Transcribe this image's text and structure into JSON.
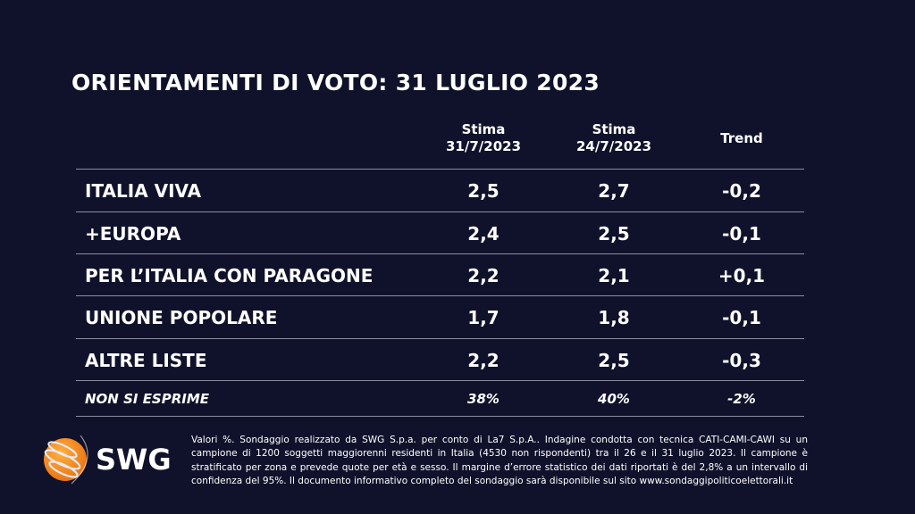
{
  "title": "ORIENTAMENTI DI VOTO: 31 LUGLIO 2023",
  "headers": {
    "col1_l1": "Stima",
    "col1_l2": "31/7/2023",
    "col2_l1": "Stima",
    "col2_l2": "24/7/2023",
    "col3": "Trend"
  },
  "rows": [
    {
      "party": "ITALIA VIVA",
      "current": "2,5",
      "previous": "2,7",
      "trend": "-0,2"
    },
    {
      "party": "+EUROPA",
      "current": "2,4",
      "previous": "2,5",
      "trend": "-0,1"
    },
    {
      "party": "PER L’ITALIA CON PARAGONE",
      "current": "2,2",
      "previous": "2,1",
      "trend": "+0,1"
    },
    {
      "party": "UNIONE POPOLARE",
      "current": "1,7",
      "previous": "1,8",
      "trend": "-0,1"
    },
    {
      "party": "ALTRE LISTE",
      "current": "2,2",
      "previous": "2,5",
      "trend": "-0,3"
    },
    {
      "party": "NON SI ESPRIME",
      "current": "38%",
      "previous": "40%",
      "trend": "-2%"
    }
  ],
  "logo": {
    "text": "SWG",
    "colors": {
      "globe": "#f28c1a",
      "background": "#10122b"
    }
  },
  "note": "Valori %. Sondaggio realizzato da SWG S.p.a. per conto di La7 S.p.A.. Indagine condotta con tecnica CATI-CAMI-CAWI su un campione di 1200 soggetti maggiorenni residenti in Italia (4530 non rispondenti) tra il 26 e il 31 luglio 2023. Il campione è stratificato per zona e prevede quote per età e sesso. Il margine d’errore statistico dei dati riportati è del 2,8% a un intervallo di confidenza del 95%. Il documento informativo completo del sondaggio sarà disponibile sul sito www.sondaggipoliticoelettorali.it"
}
